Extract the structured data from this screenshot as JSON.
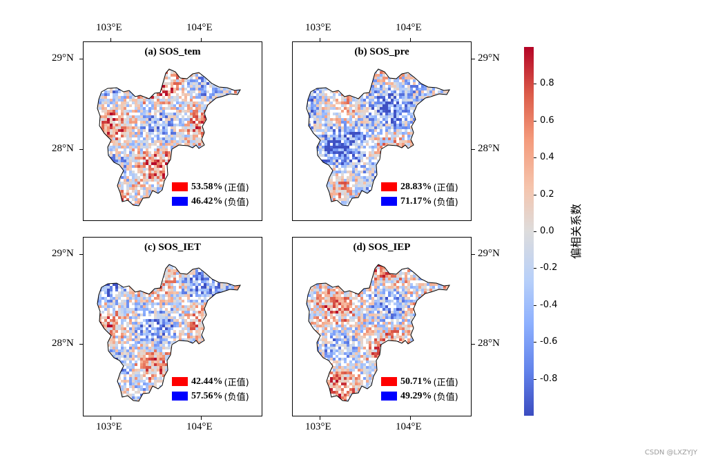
{
  "colors": {
    "positive": "#ff0000",
    "negative": "#0000ff",
    "frame": "#000000"
  },
  "axis_labels": {
    "lon_103": "103°E",
    "lon_104": "104°E",
    "lat_29": "29°N",
    "lat_28": "28°N"
  },
  "panels": [
    {
      "title": "(a) SOS_tem",
      "positive_pct": "53.58%",
      "negative_pct": "46.42%",
      "positive_label": "(正值)",
      "negative_label": "(负值)",
      "positive_fraction": 0.5358
    },
    {
      "title": "(b) SOS_pre",
      "positive_pct": "28.83%",
      "negative_pct": "71.17%",
      "positive_label": "(正值)",
      "negative_label": "(负值)",
      "positive_fraction": 0.2883
    },
    {
      "title": "(c) SOS_IET",
      "positive_pct": "42.44%",
      "negative_pct": "57.56%",
      "positive_label": "(正值)",
      "negative_label": "(负值)",
      "positive_fraction": 0.4244
    },
    {
      "title": "(d) SOS_IEP",
      "positive_pct": "50.71%",
      "negative_pct": "49.29%",
      "positive_label": "(正值)",
      "negative_label": "(负值)",
      "positive_fraction": 0.5071
    }
  ],
  "colorbar": {
    "label": "偏相关系数",
    "ticks": [
      "0.8",
      "0.6",
      "0.4",
      "0.2",
      "0.0",
      "-0.2",
      "-0.4",
      "-0.6",
      "-0.8"
    ],
    "range": [
      -1.0,
      1.0
    ]
  },
  "watermark": "CSDN @LXZYJY"
}
